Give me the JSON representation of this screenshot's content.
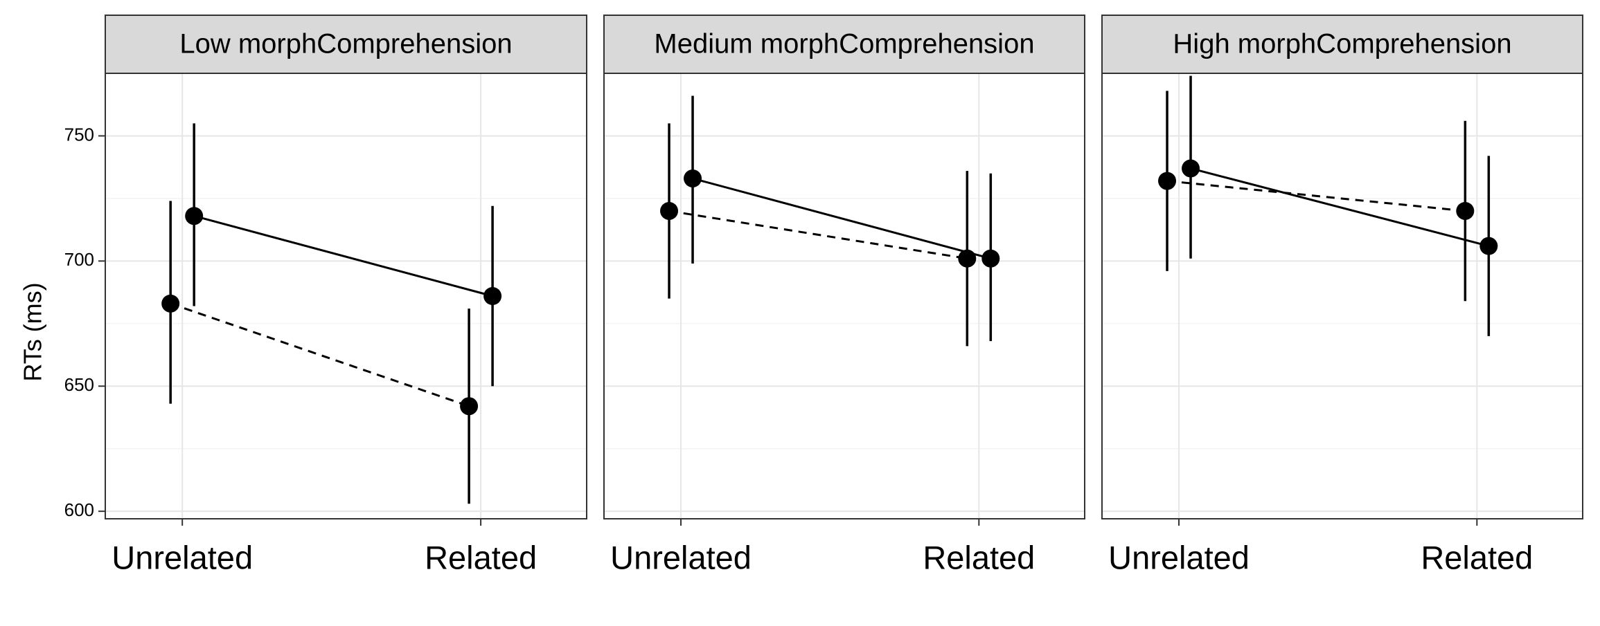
{
  "chart_data": {
    "type": "line",
    "layout": "faceted, 3 panels in a row with shared y axis",
    "ylabel": "RTs (ms)",
    "xlabel": "",
    "ylim": [
      597,
      775
    ],
    "yticks": [
      600,
      650,
      700,
      750
    ],
    "categories": [
      "Unrelated",
      "Related"
    ],
    "grid": "horizontal major and minor gridlines",
    "legend": "none",
    "series_styles": [
      {
        "id": "A",
        "linestyle": "dashed",
        "position": "left of category"
      },
      {
        "id": "B",
        "linestyle": "solid",
        "position": "right of category"
      }
    ],
    "panels": [
      {
        "label": "Low morphComprehension",
        "series": [
          {
            "style": "dashed",
            "values": [
              683,
              642
            ],
            "lower": [
              643,
              603
            ],
            "upper": [
              724,
              681
            ]
          },
          {
            "style": "solid",
            "values": [
              718,
              686
            ],
            "lower": [
              682,
              650
            ],
            "upper": [
              755,
              722
            ]
          }
        ]
      },
      {
        "label": "Medium morphComprehension",
        "series": [
          {
            "style": "dashed",
            "values": [
              720,
              701
            ],
            "lower": [
              685,
              666
            ],
            "upper": [
              755,
              736
            ]
          },
          {
            "style": "solid",
            "values": [
              733,
              701
            ],
            "lower": [
              699,
              668
            ],
            "upper": [
              766,
              735
            ]
          }
        ]
      },
      {
        "label": "High morphComprehension",
        "series": [
          {
            "style": "dashed",
            "values": [
              732,
              720
            ],
            "lower": [
              696,
              684
            ],
            "upper": [
              768,
              756
            ]
          },
          {
            "style": "solid",
            "values": [
              737,
              706
            ],
            "lower": [
              701,
              670
            ],
            "upper": [
              774,
              742
            ]
          }
        ]
      }
    ]
  }
}
